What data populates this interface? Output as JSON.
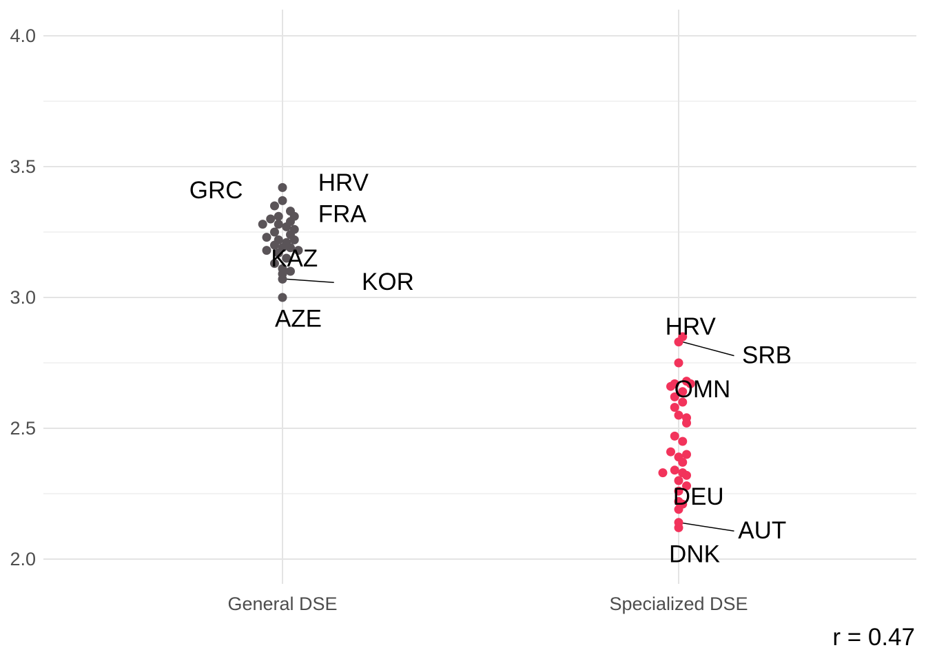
{
  "chart_data": {
    "type": "scatter",
    "title": "",
    "xlabel": "",
    "ylabel": "",
    "categories": [
      "General DSE",
      "Specialized DSE"
    ],
    "ylim": [
      1.84,
      4.1
    ],
    "yticks": [
      2.0,
      2.5,
      3.0,
      3.5,
      4.0
    ],
    "ytick_labels": [
      "2.0",
      "2.5",
      "3.0",
      "3.5",
      "4.0"
    ],
    "grid": true,
    "legend": "none",
    "colors": {
      "General DSE": "#5a5458",
      "Specialized DSE": "#f2335b"
    },
    "series": [
      {
        "category": "General DSE",
        "points": [
          {
            "dx": 0.0,
            "y": 3.42
          },
          {
            "dx": -0.02,
            "y": 3.35
          },
          {
            "dx": 0.0,
            "y": 3.37
          },
          {
            "dx": 0.02,
            "y": 3.33
          },
          {
            "dx": 0.03,
            "y": 3.31
          },
          {
            "dx": -0.01,
            "y": 3.31
          },
          {
            "dx": 0.02,
            "y": 3.29
          },
          {
            "dx": -0.03,
            "y": 3.3
          },
          {
            "dx": -0.05,
            "y": 3.28
          },
          {
            "dx": -0.01,
            "y": 3.28
          },
          {
            "dx": 0.01,
            "y": 3.27
          },
          {
            "dx": 0.03,
            "y": 3.26
          },
          {
            "dx": -0.02,
            "y": 3.25
          },
          {
            "dx": 0.02,
            "y": 3.24
          },
          {
            "dx": -0.04,
            "y": 3.23
          },
          {
            "dx": -0.01,
            "y": 3.22
          },
          {
            "dx": 0.01,
            "y": 3.21
          },
          {
            "dx": 0.03,
            "y": 3.22
          },
          {
            "dx": -0.02,
            "y": 3.2
          },
          {
            "dx": 0.0,
            "y": 3.19
          },
          {
            "dx": 0.02,
            "y": 3.19
          },
          {
            "dx": -0.04,
            "y": 3.18
          },
          {
            "dx": -0.01,
            "y": 3.17
          },
          {
            "dx": 0.04,
            "y": 3.18
          },
          {
            "dx": 0.01,
            "y": 3.15
          },
          {
            "dx": -0.02,
            "y": 3.13
          },
          {
            "dx": 0.0,
            "y": 3.11
          },
          {
            "dx": 0.02,
            "y": 3.1
          },
          {
            "dx": 0.0,
            "y": 3.09
          },
          {
            "dx": 0.0,
            "y": 3.07
          },
          {
            "dx": 0.0,
            "y": 3.0
          }
        ],
        "labels": [
          {
            "text": "HRV",
            "dx": 0.09,
            "y": 3.44,
            "anchor": "start",
            "leader": false
          },
          {
            "text": "GRC",
            "dx": -0.1,
            "y": 3.41,
            "anchor": "end",
            "leader": false
          },
          {
            "text": "FRA",
            "dx": 0.09,
            "y": 3.32,
            "anchor": "start",
            "leader": false
          },
          {
            "text": "KAZ",
            "dx": 0.03,
            "y": 3.15,
            "anchor": "middle",
            "leader": false
          },
          {
            "text": "KOR",
            "dx": 0.2,
            "y": 3.06,
            "anchor": "start",
            "leader": true,
            "from_dx": 0.01,
            "from_y": 3.07,
            "to_dx": 0.13
          },
          {
            "text": "AZE",
            "dx": 0.04,
            "y": 2.92,
            "anchor": "middle",
            "leader": false
          }
        ]
      },
      {
        "category": "Specialized DSE",
        "points": [
          {
            "dx": 0.01,
            "y": 2.85
          },
          {
            "dx": 0.0,
            "y": 2.83
          },
          {
            "dx": 0.0,
            "y": 2.75
          },
          {
            "dx": 0.02,
            "y": 2.68
          },
          {
            "dx": -0.01,
            "y": 2.67
          },
          {
            "dx": -0.02,
            "y": 2.66
          },
          {
            "dx": 0.03,
            "y": 2.67
          },
          {
            "dx": 0.01,
            "y": 2.64
          },
          {
            "dx": -0.01,
            "y": 2.62
          },
          {
            "dx": 0.01,
            "y": 2.6
          },
          {
            "dx": -0.01,
            "y": 2.58
          },
          {
            "dx": 0.02,
            "y": 2.54
          },
          {
            "dx": 0.0,
            "y": 2.55
          },
          {
            "dx": 0.02,
            "y": 2.52
          },
          {
            "dx": -0.01,
            "y": 2.47
          },
          {
            "dx": 0.01,
            "y": 2.45
          },
          {
            "dx": -0.02,
            "y": 2.41
          },
          {
            "dx": 0.0,
            "y": 2.39
          },
          {
            "dx": 0.02,
            "y": 2.4
          },
          {
            "dx": 0.01,
            "y": 2.37
          },
          {
            "dx": -0.04,
            "y": 2.33
          },
          {
            "dx": -0.01,
            "y": 2.34
          },
          {
            "dx": 0.01,
            "y": 2.33
          },
          {
            "dx": 0.02,
            "y": 2.32
          },
          {
            "dx": 0.0,
            "y": 2.3
          },
          {
            "dx": 0.02,
            "y": 2.28
          },
          {
            "dx": 0.0,
            "y": 2.26
          },
          {
            "dx": 0.0,
            "y": 2.22
          },
          {
            "dx": 0.01,
            "y": 2.21
          },
          {
            "dx": 0.0,
            "y": 2.19
          },
          {
            "dx": 0.0,
            "y": 2.14
          },
          {
            "dx": 0.0,
            "y": 2.12
          }
        ],
        "labels": [
          {
            "text": "HRV",
            "dx": 0.03,
            "y": 2.89,
            "anchor": "middle",
            "leader": false
          },
          {
            "text": "SRB",
            "dx": 0.16,
            "y": 2.78,
            "anchor": "start",
            "leader": true,
            "from_dx": 0.01,
            "from_y": 2.83,
            "to_dx": 0.14
          },
          {
            "text": "OMN",
            "dx": 0.06,
            "y": 2.65,
            "anchor": "middle",
            "leader": false
          },
          {
            "text": "DEU",
            "dx": 0.05,
            "y": 2.24,
            "anchor": "middle",
            "leader": false
          },
          {
            "text": "AUT",
            "dx": 0.15,
            "y": 2.11,
            "anchor": "start",
            "leader": true,
            "from_dx": 0.0,
            "from_y": 2.14,
            "to_dx": 0.14
          },
          {
            "text": "DNK",
            "dx": 0.04,
            "y": 2.02,
            "anchor": "middle",
            "leader": false
          }
        ]
      }
    ],
    "annotation": "r = 0.47"
  }
}
